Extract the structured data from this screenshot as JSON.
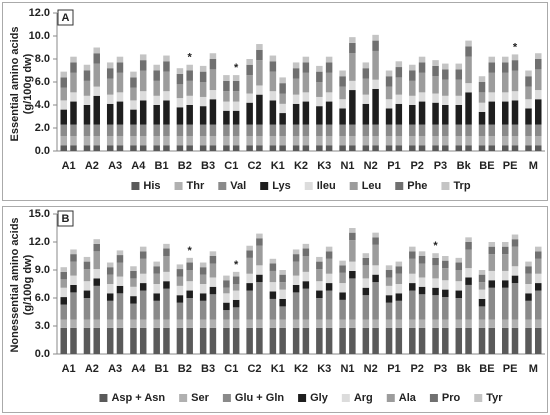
{
  "chart_data": [
    {
      "type": "stacked_bar",
      "panel_label": "A",
      "ylabel": [
        "Essential amino acids",
        "(g/100g dw)"
      ],
      "categories": [
        "A1",
        null,
        "A2",
        null,
        "A3",
        null,
        "A4",
        null,
        "B1",
        null,
        "B2",
        null,
        "B3",
        null,
        "C1",
        null,
        "C2",
        null,
        "K1",
        null,
        "K2",
        null,
        "K3",
        null,
        "N1",
        null,
        "N2",
        null,
        "P1",
        null,
        "P2",
        null,
        "P3",
        null,
        "Bk",
        null,
        "BE",
        null,
        "PE",
        null,
        "M",
        null
      ],
      "ylim": [
        0,
        12
      ],
      "yticks": [
        {
          "value": 0,
          "label": "0.0"
        },
        {
          "value": 2,
          "label": "2.0"
        },
        {
          "value": 4,
          "label": "4.0"
        },
        {
          "value": 6,
          "label": "6.0"
        },
        {
          "value": 8,
          "label": "8.0"
        },
        {
          "value": 10,
          "label": "10.0"
        },
        {
          "value": 12,
          "label": "12.0"
        }
      ],
      "significance": [
        null,
        null,
        null,
        null,
        null,
        null,
        null,
        null,
        null,
        null,
        null,
        "*",
        null,
        null,
        null,
        "*",
        null,
        null,
        null,
        null,
        null,
        null,
        null,
        null,
        null,
        null,
        null,
        null,
        null,
        null,
        null,
        null,
        null,
        null,
        null,
        null,
        null,
        null,
        null,
        "*",
        null,
        null
      ],
      "series": [
        {
          "name": "His",
          "color": "#5a5a5a",
          "values": [
            0.5,
            0.5,
            0.5,
            0.5,
            0.5,
            0.5,
            0.5,
            0.5,
            0.5,
            0.5,
            0.5,
            0.5,
            0.5,
            0.5,
            0.5,
            0.5,
            0.5,
            0.5,
            0.5,
            0.5,
            0.5,
            0.5,
            0.5,
            0.5,
            0.5,
            0.5,
            0.5,
            0.5,
            0.5,
            0.5,
            0.5,
            0.5,
            0.5,
            0.5,
            0.5,
            0.5,
            0.5,
            0.5,
            0.5,
            0.5,
            0.5,
            0.5
          ]
        },
        {
          "name": "Thr",
          "color": "#b0b0b0",
          "values": [
            0.8,
            0.8,
            0.8,
            0.8,
            0.8,
            0.8,
            0.8,
            0.8,
            0.8,
            0.8,
            0.8,
            0.8,
            0.8,
            0.8,
            0.8,
            0.8,
            0.8,
            0.8,
            0.8,
            0.8,
            0.8,
            0.8,
            0.8,
            0.8,
            0.8,
            0.8,
            0.8,
            0.8,
            0.8,
            0.8,
            0.8,
            0.8,
            0.8,
            0.8,
            0.8,
            0.8,
            0.8,
            0.8,
            0.8,
            0.8,
            0.8,
            0.8
          ]
        },
        {
          "name": "Val",
          "color": "#8a8a8a",
          "values": [
            1.0,
            1.0,
            1.0,
            1.0,
            1.0,
            1.0,
            1.0,
            1.0,
            1.0,
            1.0,
            1.0,
            1.0,
            1.0,
            1.0,
            1.0,
            1.0,
            1.0,
            1.0,
            1.0,
            1.0,
            1.0,
            1.0,
            1.0,
            1.0,
            1.0,
            1.0,
            1.0,
            1.0,
            1.0,
            1.0,
            1.0,
            1.0,
            1.0,
            1.0,
            1.0,
            1.0,
            1.0,
            1.0,
            1.0,
            1.0,
            1.0,
            1.0
          ]
        },
        {
          "name": "Lys",
          "color": "#1e1e1e",
          "values": [
            1.3,
            2.0,
            1.7,
            2.5,
            1.8,
            2.0,
            1.3,
            2.1,
            1.7,
            2.1,
            1.5,
            1.7,
            1.6,
            2.2,
            1.2,
            1.2,
            1.9,
            2.6,
            2.1,
            1.0,
            1.8,
            2.0,
            1.6,
            2.0,
            1.4,
            3.0,
            1.8,
            3.1,
            1.4,
            1.8,
            1.7,
            2.0,
            1.9,
            1.7,
            1.7,
            2.8,
            1.1,
            2.0,
            2.0,
            2.1,
            1.4,
            2.2
          ]
        },
        {
          "name": "Ileu",
          "color": "#dcdcdc",
          "values": [
            0.8,
            0.8,
            0.8,
            0.8,
            0.8,
            0.8,
            0.8,
            0.8,
            0.8,
            0.8,
            0.8,
            0.8,
            0.8,
            0.8,
            0.8,
            0.8,
            0.8,
            0.8,
            0.8,
            0.8,
            0.8,
            0.8,
            0.8,
            0.8,
            0.8,
            0.8,
            0.8,
            0.8,
            0.8,
            0.8,
            0.8,
            0.8,
            0.8,
            0.8,
            0.8,
            0.8,
            0.8,
            0.8,
            0.8,
            0.8,
            0.8,
            0.8
          ]
        },
        {
          "name": "Leu",
          "color": "#9c9c9c",
          "values": [
            1.1,
            1.7,
            1.3,
            2.0,
            1.4,
            1.7,
            1.1,
            1.8,
            1.3,
            1.7,
            1.2,
            1.3,
            1.3,
            1.8,
            0.9,
            0.9,
            1.6,
            2.2,
            1.7,
            0.9,
            1.4,
            1.7,
            1.3,
            1.7,
            1.1,
            2.4,
            1.4,
            2.5,
            1.1,
            1.5,
            1.3,
            1.7,
            1.5,
            1.4,
            1.4,
            2.3,
            0.9,
            1.7,
            1.7,
            1.8,
            1.1,
            1.8
          ]
        },
        {
          "name": "Phe",
          "color": "#707070",
          "values": [
            0.9,
            0.9,
            0.9,
            0.9,
            0.9,
            0.9,
            0.9,
            0.9,
            0.9,
            0.9,
            0.9,
            0.9,
            0.9,
            0.9,
            0.9,
            0.9,
            0.9,
            0.9,
            0.9,
            0.9,
            0.9,
            0.9,
            0.9,
            0.9,
            0.9,
            0.9,
            0.9,
            0.9,
            0.9,
            0.9,
            0.9,
            0.9,
            0.9,
            0.9,
            0.9,
            0.9,
            0.9,
            0.9,
            0.9,
            0.9,
            0.9,
            0.9
          ]
        },
        {
          "name": "Trp",
          "color": "#c4c4c4",
          "values": [
            0.5,
            0.5,
            0.5,
            0.5,
            0.5,
            0.5,
            0.5,
            0.5,
            0.5,
            0.5,
            0.5,
            0.5,
            0.5,
            0.5,
            0.5,
            0.5,
            0.5,
            0.5,
            0.5,
            0.5,
            0.5,
            0.5,
            0.5,
            0.5,
            0.5,
            0.5,
            0.5,
            0.5,
            0.5,
            0.5,
            0.5,
            0.5,
            0.5,
            0.5,
            0.5,
            0.5,
            0.5,
            0.5,
            0.5,
            0.5,
            0.5,
            0.5
          ]
        }
      ]
    },
    {
      "type": "stacked_bar",
      "panel_label": "B",
      "ylabel": [
        "Nonessential amino acids",
        "(g/100g dw)"
      ],
      "categories": [
        "A1",
        null,
        "A2",
        null,
        "A3",
        null,
        "A4",
        null,
        "B1",
        null,
        "B2",
        null,
        "B3",
        null,
        "C1",
        null,
        "C2",
        null,
        "K1",
        null,
        "K2",
        null,
        "K3",
        null,
        "N1",
        null,
        "N2",
        null,
        "P1",
        null,
        "P2",
        null,
        "P3",
        null,
        "Bk",
        null,
        "BE",
        null,
        "PE",
        null,
        "M",
        null
      ],
      "ylim": [
        0,
        15
      ],
      "yticks": [
        {
          "value": 0,
          "label": "0.0"
        },
        {
          "value": 3,
          "label": "3.0"
        },
        {
          "value": 6,
          "label": "6.0"
        },
        {
          "value": 9,
          "label": "9.0"
        },
        {
          "value": 12,
          "label": "12.0"
        },
        {
          "value": 15,
          "label": "15.0"
        }
      ],
      "significance": [
        null,
        null,
        null,
        null,
        null,
        null,
        null,
        null,
        null,
        null,
        null,
        "*",
        null,
        null,
        null,
        "*",
        null,
        null,
        null,
        null,
        null,
        null,
        null,
        null,
        null,
        null,
        null,
        null,
        null,
        null,
        null,
        null,
        "*",
        null,
        null,
        null,
        null,
        null,
        null,
        null,
        null,
        null
      ],
      "series": [
        {
          "name": "Asp + Asn",
          "color": "#5a5a5a",
          "values": [
            2.8,
            2.8,
            2.8,
            2.8,
            2.8,
            2.8,
            2.8,
            2.8,
            2.8,
            2.8,
            2.8,
            2.8,
            2.8,
            2.8,
            2.8,
            2.8,
            2.8,
            2.8,
            2.8,
            2.8,
            2.8,
            2.8,
            2.8,
            2.8,
            2.8,
            2.8,
            2.8,
            2.8,
            2.8,
            2.8,
            2.8,
            2.8,
            2.8,
            2.8,
            2.8,
            2.8,
            2.8,
            2.8,
            2.8,
            2.8,
            2.8,
            2.8
          ]
        },
        {
          "name": "Ser",
          "color": "#b0b0b0",
          "values": [
            0.9,
            0.9,
            0.9,
            0.9,
            0.9,
            0.9,
            0.9,
            0.9,
            0.9,
            0.9,
            0.9,
            0.9,
            0.9,
            0.9,
            0.9,
            0.9,
            0.9,
            0.9,
            0.9,
            0.9,
            0.9,
            0.9,
            0.9,
            0.9,
            0.9,
            0.9,
            0.9,
            0.9,
            0.9,
            0.9,
            0.9,
            0.9,
            0.9,
            0.9,
            0.9,
            0.9,
            0.9,
            0.9,
            0.9,
            0.9,
            0.9,
            0.9
          ]
        },
        {
          "name": "Glu + Gln",
          "color": "#8a8a8a",
          "values": [
            1.6,
            2.9,
            2.3,
            3.6,
            2.0,
            2.8,
            1.7,
            3.1,
            2.0,
            3.3,
            1.8,
            2.3,
            2.0,
            2.7,
            1.0,
            1.3,
            3.1,
            4.0,
            2.2,
            1.4,
            2.9,
            3.3,
            2.3,
            3.1,
            2.1,
            4.4,
            2.6,
            4.0,
            1.8,
            2.0,
            3.1,
            2.7,
            2.6,
            2.4,
            2.3,
            3.7,
            1.4,
            3.4,
            3.4,
            3.9,
            2.0,
            3.1
          ]
        },
        {
          "name": "Gly",
          "color": "#1e1e1e",
          "values": [
            0.8,
            0.8,
            0.8,
            0.8,
            0.8,
            0.8,
            0.8,
            0.8,
            0.8,
            0.8,
            0.8,
            0.8,
            0.8,
            0.8,
            0.8,
            0.8,
            0.8,
            0.8,
            0.8,
            0.8,
            0.8,
            0.8,
            0.8,
            0.8,
            0.8,
            0.8,
            0.8,
            0.8,
            0.8,
            0.8,
            0.8,
            0.8,
            0.8,
            0.8,
            0.8,
            0.8,
            0.8,
            0.8,
            0.8,
            0.8,
            0.8,
            0.8
          ]
        },
        {
          "name": "Arg",
          "color": "#dcdcdc",
          "values": [
            1.0,
            1.0,
            1.0,
            1.0,
            1.0,
            1.0,
            1.0,
            1.0,
            1.0,
            1.0,
            1.0,
            1.0,
            1.0,
            1.0,
            1.0,
            1.0,
            1.0,
            1.0,
            1.0,
            1.0,
            1.0,
            1.0,
            1.0,
            1.0,
            1.0,
            1.0,
            1.0,
            1.0,
            1.0,
            1.0,
            1.0,
            1.0,
            1.0,
            1.0,
            1.0,
            1.0,
            1.0,
            1.0,
            1.0,
            1.0,
            1.0,
            1.0
          ]
        },
        {
          "name": "Ala",
          "color": "#9c9c9c",
          "values": [
            0.9,
            1.5,
            1.3,
            1.9,
            1.0,
            1.5,
            0.9,
            1.6,
            1.1,
            1.7,
            1.0,
            1.2,
            1.0,
            1.5,
            0.6,
            0.7,
            1.7,
            2.1,
            1.2,
            0.8,
            1.5,
            1.7,
            1.3,
            1.6,
            1.1,
            2.3,
            1.4,
            2.2,
            0.9,
            1.1,
            1.6,
            1.5,
            1.4,
            1.3,
            1.2,
            2.0,
            0.8,
            1.8,
            1.8,
            2.1,
            1.1,
            1.6
          ]
        },
        {
          "name": "Pro",
          "color": "#707070",
          "values": [
            0.8,
            0.8,
            0.8,
            0.8,
            0.8,
            0.8,
            0.8,
            0.8,
            0.8,
            0.8,
            0.8,
            0.8,
            0.8,
            0.8,
            0.8,
            0.8,
            0.8,
            0.8,
            0.8,
            0.8,
            0.8,
            0.8,
            0.8,
            0.8,
            0.8,
            0.8,
            0.8,
            0.8,
            0.8,
            0.8,
            0.8,
            0.8,
            0.8,
            0.8,
            0.8,
            0.8,
            0.8,
            0.8,
            0.8,
            0.8,
            0.8,
            0.8
          ]
        },
        {
          "name": "Tyr",
          "color": "#c4c4c4",
          "values": [
            0.5,
            0.5,
            0.5,
            0.5,
            0.5,
            0.5,
            0.5,
            0.5,
            0.5,
            0.5,
            0.5,
            0.5,
            0.5,
            0.5,
            0.5,
            0.5,
            0.5,
            0.5,
            0.5,
            0.5,
            0.5,
            0.5,
            0.5,
            0.5,
            0.5,
            0.5,
            0.5,
            0.5,
            0.5,
            0.5,
            0.5,
            0.5,
            0.5,
            0.5,
            0.5,
            0.5,
            0.5,
            0.5,
            0.5,
            0.5,
            0.5,
            0.5
          ]
        }
      ]
    }
  ]
}
